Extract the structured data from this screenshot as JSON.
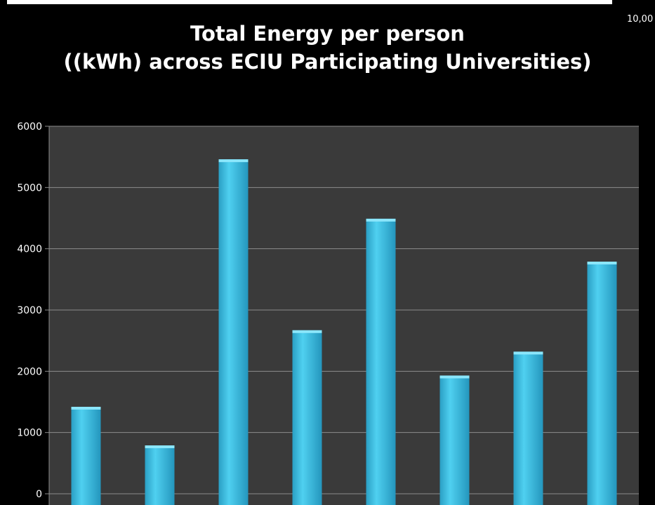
{
  "chart_data": {
    "type": "bar",
    "title_line1": "Total Energy per person",
    "title_line2": "((kWh) across ECIU Participating Universities)",
    "corner_label": "10,00",
    "xlabel": "",
    "ylabel": "",
    "ylim": [
      0,
      6000
    ],
    "y_ticks": [
      "0",
      "1000",
      "2000",
      "3000",
      "4000",
      "5000",
      "6000"
    ],
    "y_tick_values": [
      0,
      1000,
      2000,
      3000,
      4000,
      5000,
      6000
    ],
    "values": [
      1420,
      790,
      5460,
      2670,
      4490,
      1930,
      2320,
      3790
    ],
    "grid": true,
    "bar_color": "#3cc0e4",
    "plot_background": "#3a3a3a",
    "grid_color": "#8c8c8c"
  }
}
